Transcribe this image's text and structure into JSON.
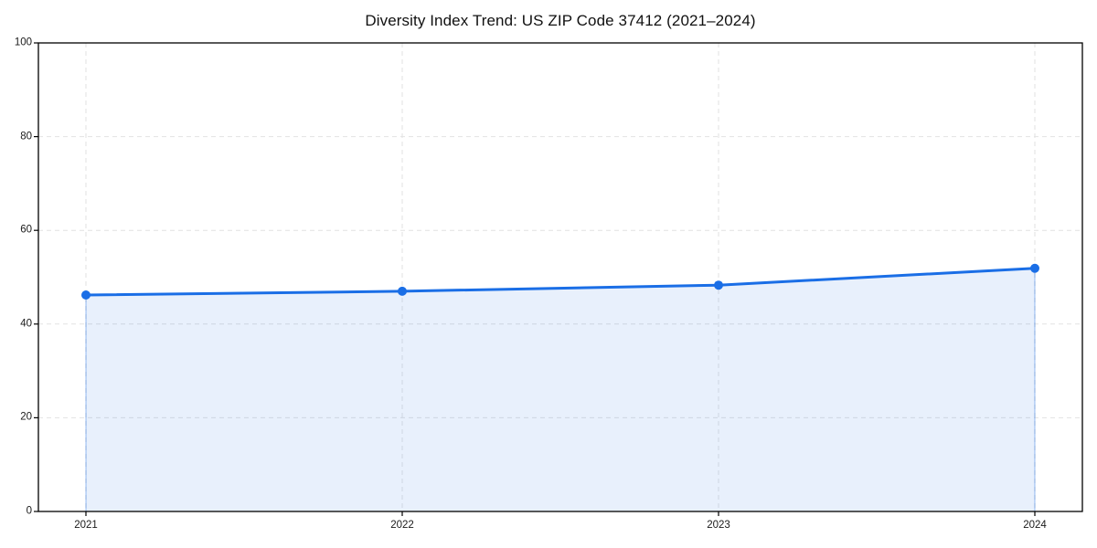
{
  "chart_data": {
    "type": "area",
    "title": "Diversity Index Trend: US ZIP Code 37412 (2021–2024)",
    "x": [
      "2021",
      "2022",
      "2023",
      "2024"
    ],
    "series": [
      {
        "name": "Diversity Index",
        "values": [
          46.2,
          47.0,
          48.3,
          51.9
        ]
      }
    ],
    "xlabel": "",
    "ylabel": "",
    "ylim": [
      0,
      100
    ],
    "yticks": [
      0,
      20,
      40,
      60,
      80,
      100
    ],
    "grid": true,
    "grid_style": "dashed",
    "legend": false,
    "colors": {
      "line": "#1a6ee6",
      "marker": "#1a6ee6",
      "fill": "rgba(26,110,230,0.10)",
      "fill_edge": "rgba(26,110,230,0.30)",
      "gridline": "#e2e2e2",
      "axis_border": "#000000",
      "tick_text": "#1a1a1a",
      "background": "#ffffff"
    }
  },
  "layout_labels": {
    "figure_name": "diversity-index-trend-chart"
  }
}
